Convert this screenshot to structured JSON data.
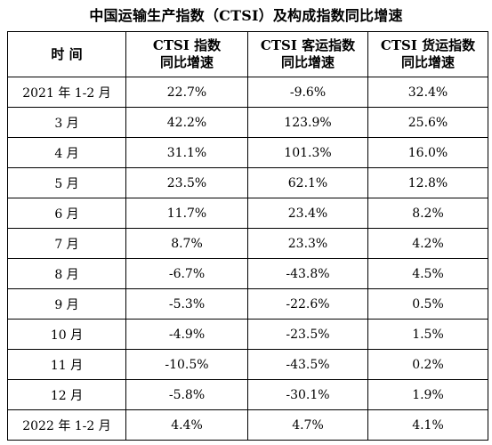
{
  "title": "中国运输生产指数（CTSI）及构成指数同比增速",
  "table": {
    "headers": [
      {
        "line1": "时 间",
        "line2": ""
      },
      {
        "line1": "CTSI 指数",
        "line2": "同比增速"
      },
      {
        "line1": "CTSI 客运指数",
        "line2": "同比增速"
      },
      {
        "line1": "CTSI 货运指数",
        "line2": "同比增速"
      }
    ],
    "rows": [
      {
        "period": "2021 年 1-2 月",
        "ctsi": "22.7%",
        "passenger": "-9.6%",
        "freight": "32.4%"
      },
      {
        "period": "3 月",
        "ctsi": "42.2%",
        "passenger": "123.9%",
        "freight": "25.6%"
      },
      {
        "period": "4 月",
        "ctsi": "31.1%",
        "passenger": "101.3%",
        "freight": "16.0%"
      },
      {
        "period": "5 月",
        "ctsi": "23.5%",
        "passenger": "62.1%",
        "freight": "12.8%"
      },
      {
        "period": "6 月",
        "ctsi": "11.7%",
        "passenger": "23.4%",
        "freight": "8.2%"
      },
      {
        "period": "7 月",
        "ctsi": "8.7%",
        "passenger": "23.3%",
        "freight": "4.2%"
      },
      {
        "period": "8 月",
        "ctsi": "-6.7%",
        "passenger": "-43.8%",
        "freight": "4.5%"
      },
      {
        "period": "9 月",
        "ctsi": "-5.3%",
        "passenger": "-22.6%",
        "freight": "0.5%"
      },
      {
        "period": "10 月",
        "ctsi": "-4.9%",
        "passenger": "-23.5%",
        "freight": "1.5%"
      },
      {
        "period": "11 月",
        "ctsi": "-10.5%",
        "passenger": "-43.5%",
        "freight": "0.2%"
      },
      {
        "period": "12 月",
        "ctsi": "-5.8%",
        "passenger": "-30.1%",
        "freight": "1.9%"
      },
      {
        "period": "2022 年 1-2 月",
        "ctsi": "4.4%",
        "passenger": "4.7%",
        "freight": "4.1%"
      }
    ]
  }
}
